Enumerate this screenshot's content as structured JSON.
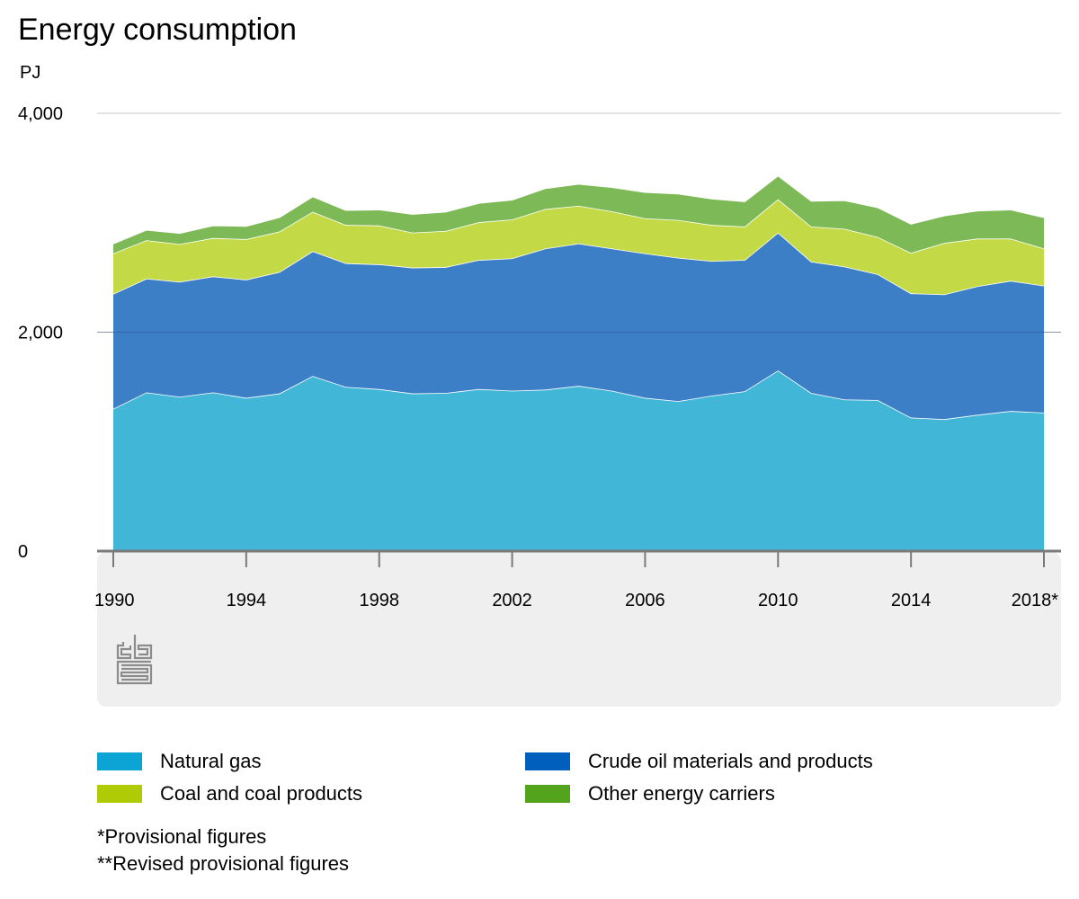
{
  "chart_data": {
    "type": "area",
    "stacked": true,
    "title": "Energy consumption",
    "ylabel": "PJ",
    "ylim": [
      0,
      4000
    ],
    "yticks": [
      0,
      2000,
      4000
    ],
    "ytick_labels": [
      "0",
      "2,000",
      "4,000"
    ],
    "x": [
      1990,
      1991,
      1992,
      1993,
      1994,
      1995,
      1996,
      1997,
      1998,
      1999,
      2000,
      2001,
      2002,
      2003,
      2004,
      2005,
      2006,
      2007,
      2008,
      2009,
      2010,
      2011,
      2012,
      2013,
      2014,
      2015,
      2016,
      2017,
      2018
    ],
    "xticks": [
      1990,
      1994,
      1998,
      2002,
      2006,
      2010,
      2014,
      2018
    ],
    "xtick_labels": [
      "1990",
      "1994",
      "1998",
      "2002",
      "2006",
      "2010",
      "2014",
      "2018*"
    ],
    "grid": true,
    "series": [
      {
        "name": "Natural gas",
        "color": "#42b6d6",
        "values": [
          1300,
          1450,
          1410,
          1450,
          1400,
          1440,
          1600,
          1500,
          1480,
          1440,
          1445,
          1480,
          1465,
          1475,
          1510,
          1465,
          1400,
          1370,
          1420,
          1460,
          1650,
          1445,
          1385,
          1380,
          1220,
          1205,
          1245,
          1280,
          1265
        ]
      },
      {
        "name": "Crude oil materials and products",
        "color": "#3d7fc7",
        "values": [
          1050,
          1040,
          1050,
          1060,
          1080,
          1110,
          1140,
          1130,
          1140,
          1150,
          1150,
          1180,
          1210,
          1290,
          1300,
          1300,
          1320,
          1310,
          1230,
          1200,
          1260,
          1200,
          1215,
          1150,
          1135,
          1140,
          1175,
          1190,
          1160
        ]
      },
      {
        "name": "Coal and coal products",
        "color": "#c4d946",
        "values": [
          370,
          350,
          345,
          350,
          370,
          370,
          360,
          350,
          355,
          320,
          330,
          345,
          355,
          360,
          345,
          340,
          320,
          345,
          330,
          305,
          305,
          320,
          345,
          340,
          370,
          470,
          435,
          385,
          340
        ]
      },
      {
        "name": "Other energy carriers",
        "color": "#7dba57",
        "values": [
          90,
          95,
          100,
          115,
          120,
          130,
          140,
          135,
          145,
          170,
          175,
          175,
          180,
          190,
          200,
          220,
          240,
          240,
          240,
          230,
          215,
          235,
          260,
          270,
          265,
          250,
          255,
          265,
          285
        ]
      }
    ]
  },
  "legend": {
    "items": [
      {
        "label": "Natural gas",
        "color": "#0ca4d4"
      },
      {
        "label": "Crude oil materials and products",
        "color": "#005ebd"
      },
      {
        "label": "Coal and coal products",
        "color": "#afcb05"
      },
      {
        "label": "Other energy carriers",
        "color": "#53a31d"
      }
    ]
  },
  "footnotes": [
    "*Provisional figures",
    "**Revised provisional figures"
  ],
  "logo": {
    "icon": "cbs-logo-icon",
    "text": "cbs"
  }
}
